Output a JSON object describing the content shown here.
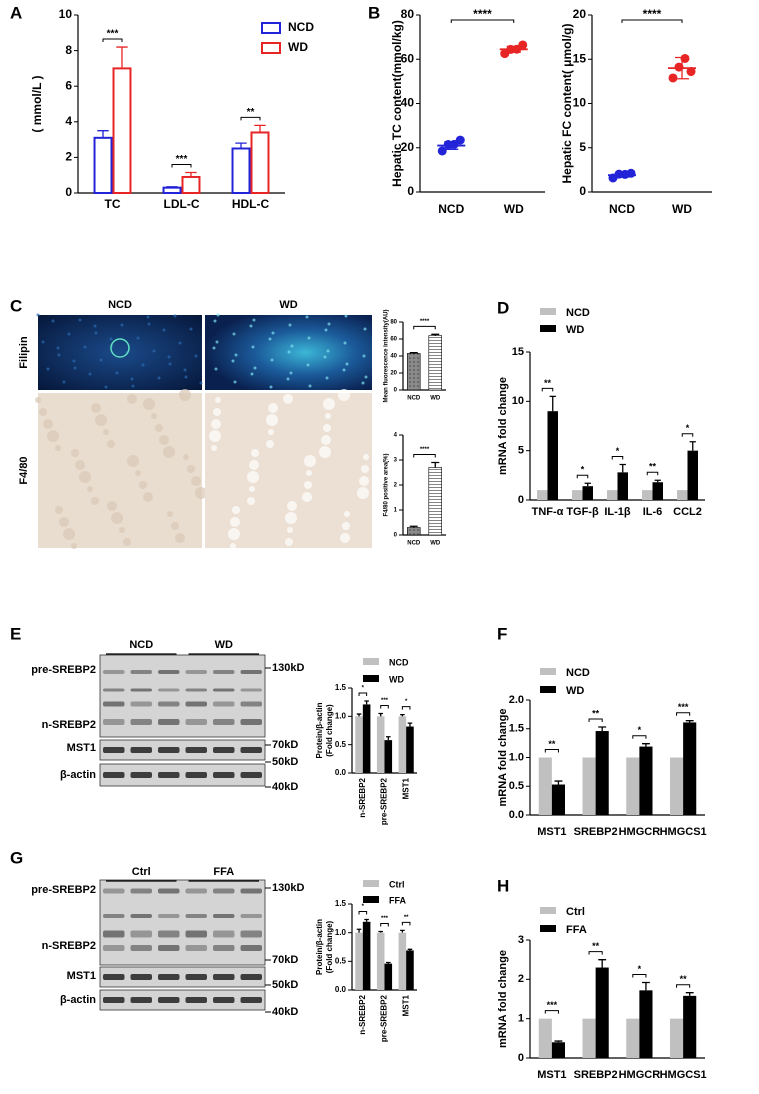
{
  "panel_letters": [
    "A",
    "B",
    "C",
    "D",
    "E",
    "F",
    "G",
    "H"
  ],
  "image_panel": {
    "columns": [
      "NCD",
      "WD"
    ],
    "rows": [
      "Filipin",
      "F4/80"
    ]
  },
  "blots": [
    {
      "groups": [
        "NCD",
        "WD"
      ],
      "rows": [
        "pre-SREBP2",
        "n-SREBP2",
        "MST1",
        "β-actin"
      ],
      "markers": [
        "130kD",
        "70kD",
        "50kD",
        "40kD"
      ]
    },
    {
      "groups": [
        "Ctrl",
        "FFA"
      ],
      "rows": [
        "pre-SREBP2",
        "n-SREBP2",
        "MST1",
        "β-actin"
      ],
      "markers": [
        "130kD",
        "70kD",
        "50kD",
        "40kD"
      ]
    }
  ],
  "chart_data": [
    {
      "type": "bar",
      "bar_style": "outline",
      "ylabel": "( mmol/L )",
      "categories": [
        "TC",
        "LDL-C",
        "HDL-C"
      ],
      "series": [
        {
          "name": "NCD",
          "color": "#2323d8",
          "values": [
            3.1,
            0.3,
            2.5
          ],
          "errors": [
            0.4,
            0.05,
            0.3
          ]
        },
        {
          "name": "WD",
          "color": "#e82525",
          "values": [
            7.0,
            0.9,
            3.4
          ],
          "errors": [
            1.2,
            0.25,
            0.4
          ]
        }
      ],
      "significance": [
        "***",
        "***",
        "**"
      ],
      "ylim": [
        0,
        10
      ],
      "yticks": [
        0,
        2,
        4,
        6,
        8,
        10
      ]
    },
    {
      "type": "dot",
      "ylabel": "Hepatic TC content(mmol/kg)",
      "categories": [
        "NCD",
        "WD"
      ],
      "colors": [
        "#2323d8",
        "#e82525"
      ],
      "points": [
        [
          19,
          21,
          22,
          23
        ],
        [
          63,
          64,
          65,
          66
        ]
      ],
      "means": [
        21,
        64.5
      ],
      "sd": [
        1.7,
        1.3
      ],
      "significance": "****",
      "ylim": [
        0,
        80
      ],
      "yticks": [
        0,
        20,
        40,
        60,
        80
      ]
    },
    {
      "type": "dot",
      "ylabel": "Hepatic FC content( μmol/g)",
      "categories": [
        "NCD",
        "WD"
      ],
      "colors": [
        "#2323d8",
        "#e82525"
      ],
      "points": [
        [
          1.7,
          1.9,
          2.1,
          2.0
        ],
        [
          13.0,
          14.0,
          15.2,
          13.5
        ]
      ],
      "means": [
        1.9,
        14.0
      ],
      "sd": [
        0.2,
        1.2
      ],
      "significance": "****",
      "ylim": [
        0,
        20
      ],
      "yticks": [
        0,
        5,
        10,
        15,
        20
      ]
    },
    {
      "type": "bar",
      "ylabel": "Mean fluorescence intensity(AU)",
      "categories": [
        "NCD",
        "WD"
      ],
      "values": [
        43,
        64
      ],
      "errors": [
        1,
        1.5
      ],
      "patterns": [
        "dots",
        "stripes"
      ],
      "significance": "****",
      "ylim": [
        0,
        80
      ],
      "yticks": [
        0,
        20,
        40,
        60,
        80
      ]
    },
    {
      "type": "bar",
      "ylabel": "F4/80 positive area(%)",
      "categories": [
        "NCD",
        "WD"
      ],
      "values": [
        0.3,
        2.7
      ],
      "errors": [
        0.05,
        0.2
      ],
      "patterns": [
        "dots",
        "stripes"
      ],
      "significance": "****",
      "ylim": [
        0,
        4
      ],
      "yticks": [
        0,
        1,
        2,
        3,
        4
      ]
    },
    {
      "type": "bar",
      "ylabel": "mRNA fold change",
      "categories": [
        "TNF-α",
        "TGF-β",
        "IL-1β",
        "IL-6",
        "CCL2"
      ],
      "series": [
        {
          "name": "NCD",
          "color": "#c0c0c0",
          "values": [
            1,
            1,
            1,
            1,
            1
          ]
        },
        {
          "name": "WD",
          "color": "#000000",
          "values": [
            9.0,
            1.4,
            2.8,
            1.8,
            5.0
          ],
          "errors": [
            1.5,
            0.3,
            0.8,
            0.2,
            0.9
          ]
        }
      ],
      "significance": [
        "**",
        "*",
        "*",
        "**",
        "*"
      ],
      "ylim": [
        0,
        15
      ],
      "yticks": [
        0,
        5,
        10,
        15
      ]
    },
    {
      "type": "bar",
      "ylabel": [
        "Protein/β-actin",
        "(Fold change)"
      ],
      "categories": [
        "n-SREBP2",
        "pre-SREBP2",
        "MST1"
      ],
      "series": [
        {
          "name": "NCD",
          "color": "#c0c0c0",
          "values": [
            1.0,
            1.0,
            1.0
          ],
          "errors": [
            0.04,
            0.05,
            0.03
          ]
        },
        {
          "name": "WD",
          "color": "#000000",
          "values": [
            1.21,
            0.58,
            0.82
          ],
          "errors": [
            0.06,
            0.06,
            0.06
          ]
        }
      ],
      "significance": [
        "*",
        "***",
        "*"
      ],
      "ylim": [
        0,
        1.5
      ],
      "yticks": [
        {
          "value": 0,
          "label": "0.0"
        },
        0.5,
        {
          "value": 1,
          "label": "1.0"
        },
        1.5
      ]
    },
    {
      "type": "bar",
      "ylabel": "mRNA fold change",
      "categories": [
        "MST1",
        "SREBP2",
        "HMGCR",
        "HMGCS1"
      ],
      "series": [
        {
          "name": "NCD",
          "color": "#c0c0c0",
          "values": [
            1,
            1,
            1,
            1
          ]
        },
        {
          "name": "WD",
          "color": "#000000",
          "values": [
            0.53,
            1.46,
            1.19,
            1.61
          ],
          "errors": [
            0.06,
            0.07,
            0.05,
            0.03
          ]
        }
      ],
      "significance": [
        "**",
        "**",
        "*",
        "***"
      ],
      "ylim": [
        0,
        2
      ],
      "yticks": [
        {
          "value": 0,
          "label": "0.0"
        },
        0.5,
        {
          "value": 1,
          "label": "1.0"
        },
        1.5,
        {
          "value": 2,
          "label": "2.0"
        }
      ]
    },
    {
      "type": "bar",
      "ylabel": [
        "Protein/β-actin",
        "(Fold change)"
      ],
      "categories": [
        "n-SREBP2",
        "pre-SREBP2",
        "MST1"
      ],
      "series": [
        {
          "name": "Ctrl",
          "color": "#c0c0c0",
          "values": [
            1.0,
            1.0,
            1.0
          ],
          "errors": [
            0.06,
            0.02,
            0.04
          ]
        },
        {
          "name": "FFA",
          "color": "#000000",
          "values": [
            1.19,
            0.46,
            0.69
          ],
          "errors": [
            0.04,
            0.02,
            0.02
          ]
        }
      ],
      "significance": [
        "*",
        "***",
        "**"
      ],
      "ylim": [
        0,
        1.5
      ],
      "yticks": [
        {
          "value": 0,
          "label": "0.0"
        },
        0.5,
        {
          "value": 1,
          "label": "1.0"
        },
        1.5
      ]
    },
    {
      "type": "bar",
      "ylabel": "mRNA fold change",
      "categories": [
        "MST1",
        "SREBP2",
        "HMGCR",
        "HMGCS1"
      ],
      "series": [
        {
          "name": "Ctrl",
          "color": "#c0c0c0",
          "values": [
            1,
            1,
            1,
            1
          ]
        },
        {
          "name": "FFA",
          "color": "#000000",
          "values": [
            0.4,
            2.3,
            1.72,
            1.58
          ],
          "errors": [
            0.03,
            0.2,
            0.2,
            0.08
          ]
        }
      ],
      "significance": [
        "***",
        "**",
        "*",
        "**"
      ],
      "ylim": [
        0,
        3
      ],
      "yticks": [
        0,
        1,
        2,
        3
      ]
    }
  ]
}
